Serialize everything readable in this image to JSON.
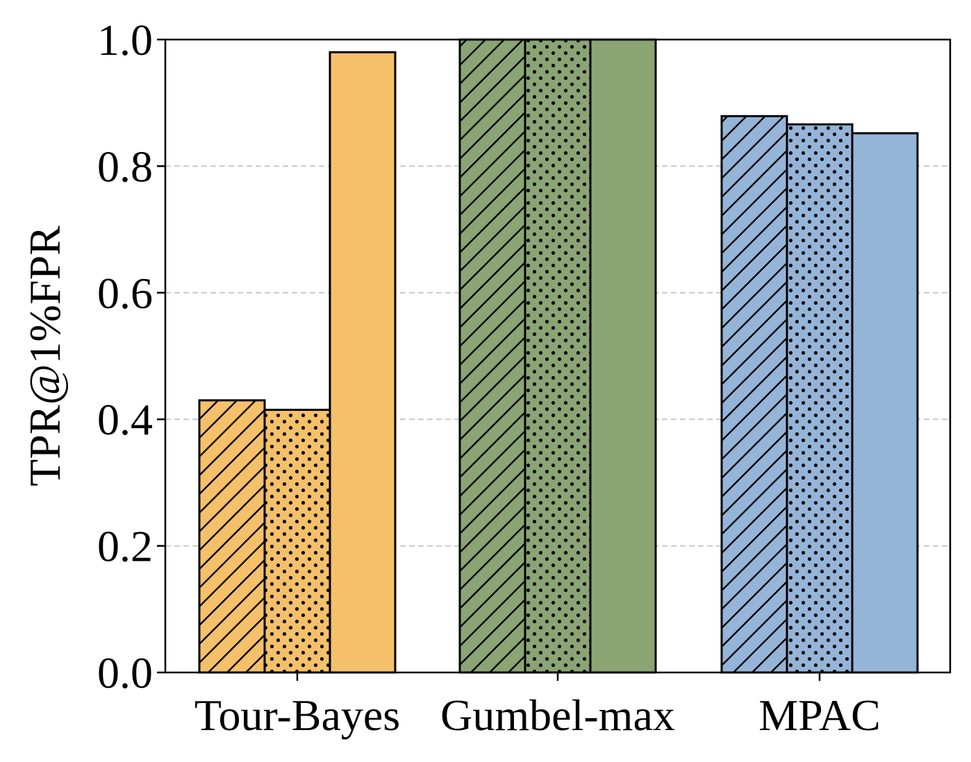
{
  "chart_data": {
    "type": "bar",
    "categories": [
      "Tour-Bayes",
      "Gumbel-max",
      "MPAC"
    ],
    "series": [
      {
        "pattern": "hatch",
        "values": [
          0.43,
          1.0,
          0.879
        ]
      },
      {
        "pattern": "dots",
        "values": [
          0.415,
          1.0,
          0.866
        ]
      },
      {
        "pattern": "solid",
        "values": [
          0.98,
          1.0,
          0.852
        ]
      }
    ],
    "category_colors": [
      "#F5C06A",
      "#8BA474",
      "#95B5D8"
    ],
    "xlabel": "",
    "ylabel": "TPR@1%FPR",
    "ylim": [
      0.0,
      1.0
    ],
    "yticks": [
      "0.0",
      "0.2",
      "0.4",
      "0.6",
      "0.8",
      "1.0"
    ],
    "ytick_values": [
      0.0,
      0.2,
      0.4,
      0.6,
      0.8,
      1.0
    ],
    "grid": "horizontal dashed",
    "legend": "none"
  }
}
